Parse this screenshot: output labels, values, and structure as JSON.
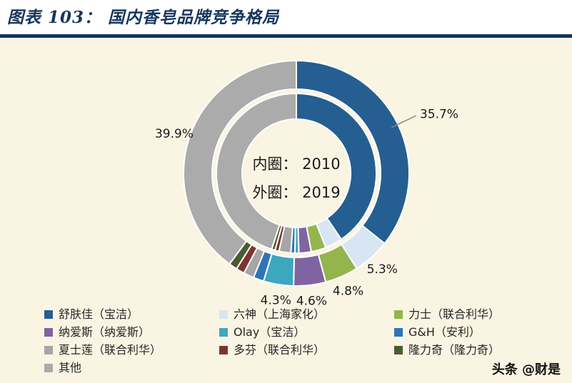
{
  "header": {
    "title": "图表 103： 国内香皂品牌竞争格局"
  },
  "theme": {
    "background": "#FAF4E3",
    "header_background": "#FFFFFF",
    "accent": "#16365D",
    "label_text": "#1A1A1A"
  },
  "chart_data": {
    "type": "pie",
    "subtype": "double-ring-donut",
    "title": "图表 103： 国内香皂品牌竞争格局",
    "center_text": [
      "内圈： 2010",
      "外圈： 2019"
    ],
    "legend_position": "bottom",
    "categories": [
      "舒肤佳（宝洁）",
      "六神（上海家化）",
      "力士（联合利华）",
      "纳爱斯（纳爱斯）",
      "Olay（宝洁）",
      "G&H（安利）",
      "夏士莲（联合利华）",
      "多芬（联合利华）",
      "隆力奇（隆力奇）",
      "其他"
    ],
    "colors": [
      "#255E91",
      "#D8E5F2",
      "#94B54D",
      "#8064A2",
      "#3EA7C0",
      "#2E75B6",
      "#A6A6A6",
      "#7E3331",
      "#4C5B30",
      "#ABABAB"
    ],
    "series": [
      {
        "name": "2010",
        "ring": "inner",
        "values": [
          40.5,
          3.5,
          3.0,
          2.5,
          0.8,
          0.8,
          2.4,
          0.8,
          0.7,
          45.0
        ],
        "labels": [
          "",
          "",
          "",
          "",
          "",
          "",
          "",
          "",
          "",
          ""
        ]
      },
      {
        "name": "2019",
        "ring": "outer",
        "values": [
          35.7,
          5.3,
          4.8,
          4.6,
          4.3,
          1.5,
          1.5,
          1.2,
          1.2,
          39.9
        ],
        "labels": [
          "35.7%",
          "5.3%",
          "4.8%",
          "4.6%",
          "4.3%",
          "",
          "",
          "",
          "",
          "39.9%"
        ]
      }
    ]
  },
  "watermark": "头条 @财是"
}
